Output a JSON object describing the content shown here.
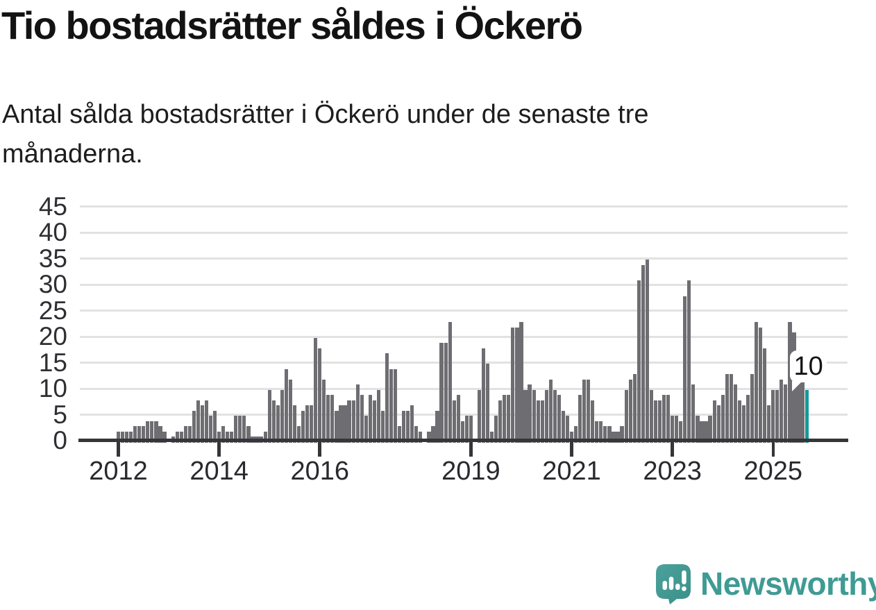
{
  "header": {
    "title": "Tio bostadsrätter såldes i Öckerö",
    "subtitle_lines": [
      "Antal sålda bostadsrätter i Öckerö under de senaste tre",
      "månaderna."
    ]
  },
  "chart_data": {
    "type": "bar",
    "title": "Tio bostadsrätter såldes i Öckerö",
    "subtitle": "Antal sålda bostadsrätter i Öckerö under de senaste tre månaderna.",
    "ylabel": "",
    "xlabel": "",
    "frequency": "monthly",
    "x_start": "2012-01",
    "x_end": "2025-09",
    "ylim": [
      0,
      45
    ],
    "grid": true,
    "y_ticks": [
      0,
      5,
      10,
      15,
      20,
      25,
      30,
      35,
      40,
      45
    ],
    "x_ticks": [
      {
        "label": "2012",
        "month_index": 0
      },
      {
        "label": "2014",
        "month_index": 24
      },
      {
        "label": "2016",
        "month_index": 48
      },
      {
        "label": "2019",
        "month_index": 84
      },
      {
        "label": "2021",
        "month_index": 108
      },
      {
        "label": "2023",
        "month_index": 132
      },
      {
        "label": "2025",
        "month_index": 156
      }
    ],
    "values": [
      2,
      2,
      2,
      2,
      3,
      3,
      3,
      4,
      4,
      4,
      3,
      2,
      0,
      1,
      2,
      2,
      3,
      3,
      6,
      8,
      7,
      8,
      5,
      6,
      2,
      3,
      2,
      2,
      5,
      5,
      5,
      3,
      1,
      1,
      1,
      2,
      10,
      8,
      7,
      10,
      14,
      12,
      7,
      3,
      6,
      7,
      7,
      20,
      18,
      12,
      9,
      9,
      6,
      7,
      7,
      8,
      8,
      11,
      9,
      5,
      9,
      8,
      10,
      6,
      17,
      14,
      14,
      3,
      6,
      6,
      7,
      3,
      2,
      0,
      2,
      3,
      6,
      19,
      19,
      23,
      8,
      9,
      4,
      5,
      5,
      0,
      10,
      18,
      15,
      2,
      5,
      8,
      9,
      9,
      22,
      22,
      23,
      10,
      11,
      10,
      8,
      8,
      10,
      12,
      10,
      9,
      6,
      5,
      2,
      3,
      9,
      12,
      12,
      8,
      4,
      4,
      3,
      3,
      2,
      2,
      3,
      10,
      12,
      13,
      31,
      34,
      35,
      10,
      8,
      8,
      9,
      9,
      5,
      5,
      4,
      28,
      31,
      11,
      5,
      4,
      4,
      5,
      8,
      7,
      9,
      13,
      13,
      11,
      8,
      7,
      9,
      13,
      23,
      22,
      18,
      7,
      10,
      10,
      12,
      11,
      23,
      21,
      17,
      12,
      10
    ],
    "highlight": {
      "index": 164,
      "label": "10",
      "value": 10
    },
    "colors": {
      "bar": "#6d6d72",
      "highlight": "#119a9b",
      "grid": "#e2e2e2",
      "axis": "#36363a",
      "text": "#1d1d1d",
      "brand": "#3f9b94"
    }
  },
  "footer": {
    "brand": "Newsworthy"
  }
}
